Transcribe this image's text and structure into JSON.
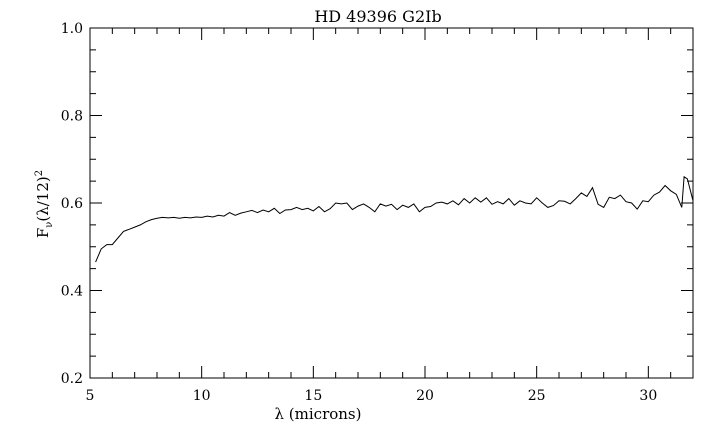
{
  "chart_data": {
    "type": "line",
    "title": "HD 49396 G2Ib",
    "xlabel": "λ (microns)",
    "ylabel": {
      "base": "F",
      "sub": "ν",
      "rest": "(λ/12)",
      "sup": "2"
    },
    "xlim": [
      5,
      32
    ],
    "ylim": [
      0.2,
      1.0
    ],
    "xticks": [
      5,
      10,
      15,
      20,
      25,
      30
    ],
    "xtick_labels": [
      "5",
      "10",
      "15",
      "20",
      "25",
      "30"
    ],
    "yticks": [
      0.2,
      0.4,
      0.6,
      0.8,
      1.0
    ],
    "ytick_labels": [
      "0.2",
      "0.4",
      "0.6",
      "0.8",
      "1.0"
    ],
    "grid": false,
    "line_color": "#000000",
    "points": [
      [
        5.25,
        0.465
      ],
      [
        5.5,
        0.495
      ],
      [
        5.75,
        0.505
      ],
      [
        6.0,
        0.505
      ],
      [
        6.25,
        0.52
      ],
      [
        6.5,
        0.535
      ],
      [
        6.75,
        0.54
      ],
      [
        7.0,
        0.545
      ],
      [
        7.25,
        0.55
      ],
      [
        7.5,
        0.557
      ],
      [
        7.75,
        0.562
      ],
      [
        8.0,
        0.565
      ],
      [
        8.25,
        0.567
      ],
      [
        8.5,
        0.566
      ],
      [
        8.75,
        0.567
      ],
      [
        9.0,
        0.565
      ],
      [
        9.25,
        0.567
      ],
      [
        9.5,
        0.566
      ],
      [
        9.75,
        0.568
      ],
      [
        10.0,
        0.567
      ],
      [
        10.25,
        0.57
      ],
      [
        10.5,
        0.568
      ],
      [
        10.75,
        0.572
      ],
      [
        11.0,
        0.57
      ],
      [
        11.25,
        0.578
      ],
      [
        11.5,
        0.572
      ],
      [
        11.75,
        0.577
      ],
      [
        12.0,
        0.58
      ],
      [
        12.25,
        0.583
      ],
      [
        12.5,
        0.578
      ],
      [
        12.75,
        0.584
      ],
      [
        13.0,
        0.58
      ],
      [
        13.25,
        0.588
      ],
      [
        13.5,
        0.576
      ],
      [
        13.75,
        0.584
      ],
      [
        14.0,
        0.585
      ],
      [
        14.25,
        0.59
      ],
      [
        14.5,
        0.585
      ],
      [
        14.75,
        0.588
      ],
      [
        15.0,
        0.582
      ],
      [
        15.25,
        0.592
      ],
      [
        15.5,
        0.58
      ],
      [
        15.75,
        0.587
      ],
      [
        16.0,
        0.6
      ],
      [
        16.25,
        0.598
      ],
      [
        16.5,
        0.6
      ],
      [
        16.75,
        0.585
      ],
      [
        17.0,
        0.593
      ],
      [
        17.25,
        0.598
      ],
      [
        17.5,
        0.59
      ],
      [
        17.75,
        0.58
      ],
      [
        18.0,
        0.598
      ],
      [
        18.25,
        0.593
      ],
      [
        18.5,
        0.597
      ],
      [
        18.75,
        0.585
      ],
      [
        19.0,
        0.595
      ],
      [
        19.25,
        0.59
      ],
      [
        19.5,
        0.598
      ],
      [
        19.75,
        0.58
      ],
      [
        20.0,
        0.59
      ],
      [
        20.25,
        0.592
      ],
      [
        20.5,
        0.6
      ],
      [
        20.75,
        0.602
      ],
      [
        21.0,
        0.598
      ],
      [
        21.25,
        0.605
      ],
      [
        21.5,
        0.596
      ],
      [
        21.75,
        0.61
      ],
      [
        22.0,
        0.6
      ],
      [
        22.25,
        0.612
      ],
      [
        22.5,
        0.602
      ],
      [
        22.75,
        0.612
      ],
      [
        23.0,
        0.597
      ],
      [
        23.25,
        0.603
      ],
      [
        23.5,
        0.598
      ],
      [
        23.75,
        0.61
      ],
      [
        24.0,
        0.595
      ],
      [
        24.25,
        0.605
      ],
      [
        24.5,
        0.6
      ],
      [
        24.75,
        0.598
      ],
      [
        25.0,
        0.612
      ],
      [
        25.25,
        0.6
      ],
      [
        25.5,
        0.59
      ],
      [
        25.75,
        0.594
      ],
      [
        26.0,
        0.605
      ],
      [
        26.25,
        0.604
      ],
      [
        26.5,
        0.598
      ],
      [
        26.75,
        0.61
      ],
      [
        27.0,
        0.623
      ],
      [
        27.25,
        0.615
      ],
      [
        27.5,
        0.635
      ],
      [
        27.75,
        0.597
      ],
      [
        28.0,
        0.59
      ],
      [
        28.25,
        0.613
      ],
      [
        28.5,
        0.61
      ],
      [
        28.75,
        0.618
      ],
      [
        29.0,
        0.603
      ],
      [
        29.25,
        0.6
      ],
      [
        29.5,
        0.586
      ],
      [
        29.75,
        0.605
      ],
      [
        30.0,
        0.603
      ],
      [
        30.25,
        0.618
      ],
      [
        30.5,
        0.625
      ],
      [
        30.75,
        0.64
      ],
      [
        31.0,
        0.628
      ],
      [
        31.25,
        0.62
      ],
      [
        31.5,
        0.59
      ],
      [
        31.6,
        0.66
      ],
      [
        31.75,
        0.655
      ],
      [
        31.9,
        0.625
      ],
      [
        32.0,
        0.605
      ]
    ]
  }
}
